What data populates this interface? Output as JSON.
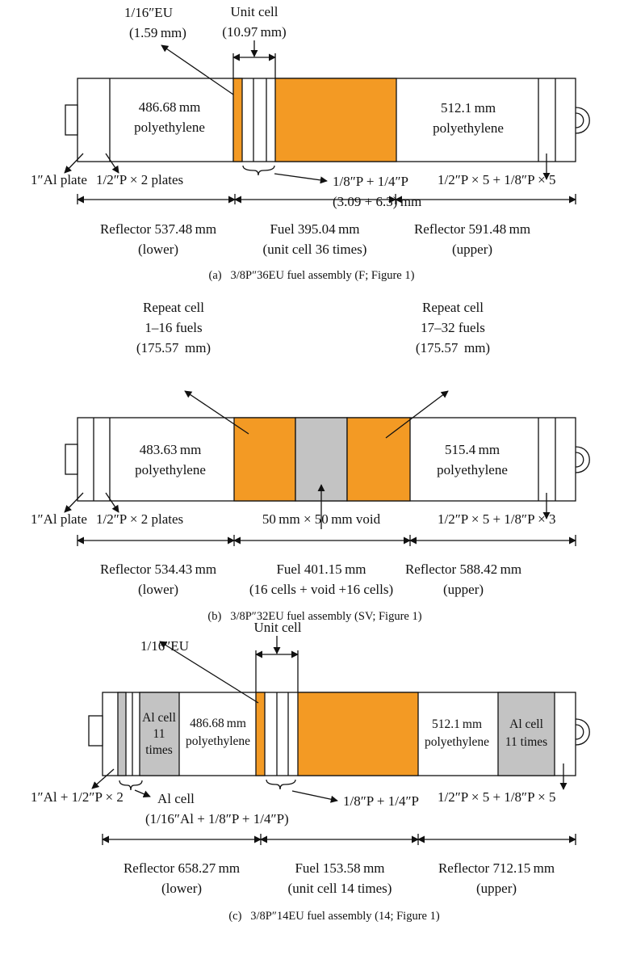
{
  "assemblies": [
    {
      "unit_note": "1/16″EU",
      "unit_note2": "(1.59 mm)",
      "unit_cell": "Unit cell",
      "unit_cell2": "(10.97 mm)",
      "lower_poly": "486.68 mm",
      "lower_poly2": "polyethylene",
      "upper_poly": "512.1 mm",
      "upper_poly2": "polyethylene",
      "al_plate": "1″Al plate",
      "plates": "1/2″P × 2 plates",
      "cell_parts": "1/8″P + 1/4″P",
      "cell_parts2": "(3.09 + 6.3) mm",
      "upper_plates": "1/2″P × 5 + 1/8″P × 5",
      "reflector_lower": "Reflector 537.48 mm",
      "reflector_lower2": "(lower)",
      "fuel_len": "Fuel 395.04 mm",
      "fuel_len2": "(unit cell 36 times)",
      "reflector_upper": "Reflector 591.48 mm",
      "reflector_upper2": "(upper)",
      "caption": "(a)  3/8P″36EU fuel assembly (F; Figure 1)"
    },
    {
      "repeat_left": "Repeat cell",
      "repeat_left2": "1–16 fuels",
      "repeat_left3": "(175.57  mm)",
      "repeat_right": "Repeat cell",
      "repeat_right2": "17–32 fuels",
      "repeat_right3": "(175.57  mm)",
      "lower_poly": "483.63 mm",
      "lower_poly2": "polyethylene",
      "upper_poly": "515.4 mm",
      "upper_poly2": "polyethylene",
      "al_plate": "1″Al plate",
      "plates": "1/2″P × 2 plates",
      "void": "50 mm × 50 mm void",
      "upper_plates": "1/2″P × 5 + 1/8″P × 3",
      "reflector_lower": "Reflector 534.43 mm",
      "reflector_lower2": "(lower)",
      "fuel_len": "Fuel 401.15 mm",
      "fuel_len2": "(16 cells + void +16 cells)",
      "reflector_upper": "Reflector 588.42 mm",
      "reflector_upper2": "(upper)",
      "caption": "(b)  3/8P″32EU fuel assembly (SV; Figure 1)"
    },
    {
      "unit_note": "1/16″EU",
      "unit_cell": "Unit cell",
      "al_cell_left": "Al cell",
      "al_cell_left2": "11",
      "al_cell_left3": "times",
      "lower_poly": "486.68 mm",
      "lower_poly2": "polyethylene",
      "upper_poly": "512.1 mm",
      "upper_poly2": "polyethylene",
      "al_cell_right": "Al cell",
      "al_cell_right2": "11 times",
      "al_plates": "1″Al + 1/2″P × 2",
      "al_cell": "Al cell",
      "al_cell2": "(1/16″Al + 1/8″P + 1/4″P)",
      "cell_parts": "1/8″P + 1/4″P",
      "upper_plates": "1/2″P × 5 + 1/8″P × 5",
      "reflector_lower": "Reflector 658.27 mm",
      "reflector_lower2": "(lower)",
      "fuel_len": "Fuel 153.58 mm",
      "fuel_len2": "(unit cell 14 times)",
      "reflector_upper": "Reflector 712.15 mm",
      "reflector_upper2": "(upper)",
      "caption": "(c)  3/8P″14EU fuel assembly (14; Figure 1)"
    }
  ],
  "colors": {
    "fuel": "#f39a24",
    "void": "#c3c3c3",
    "al": "#c3c3c3",
    "line": "#111111"
  }
}
